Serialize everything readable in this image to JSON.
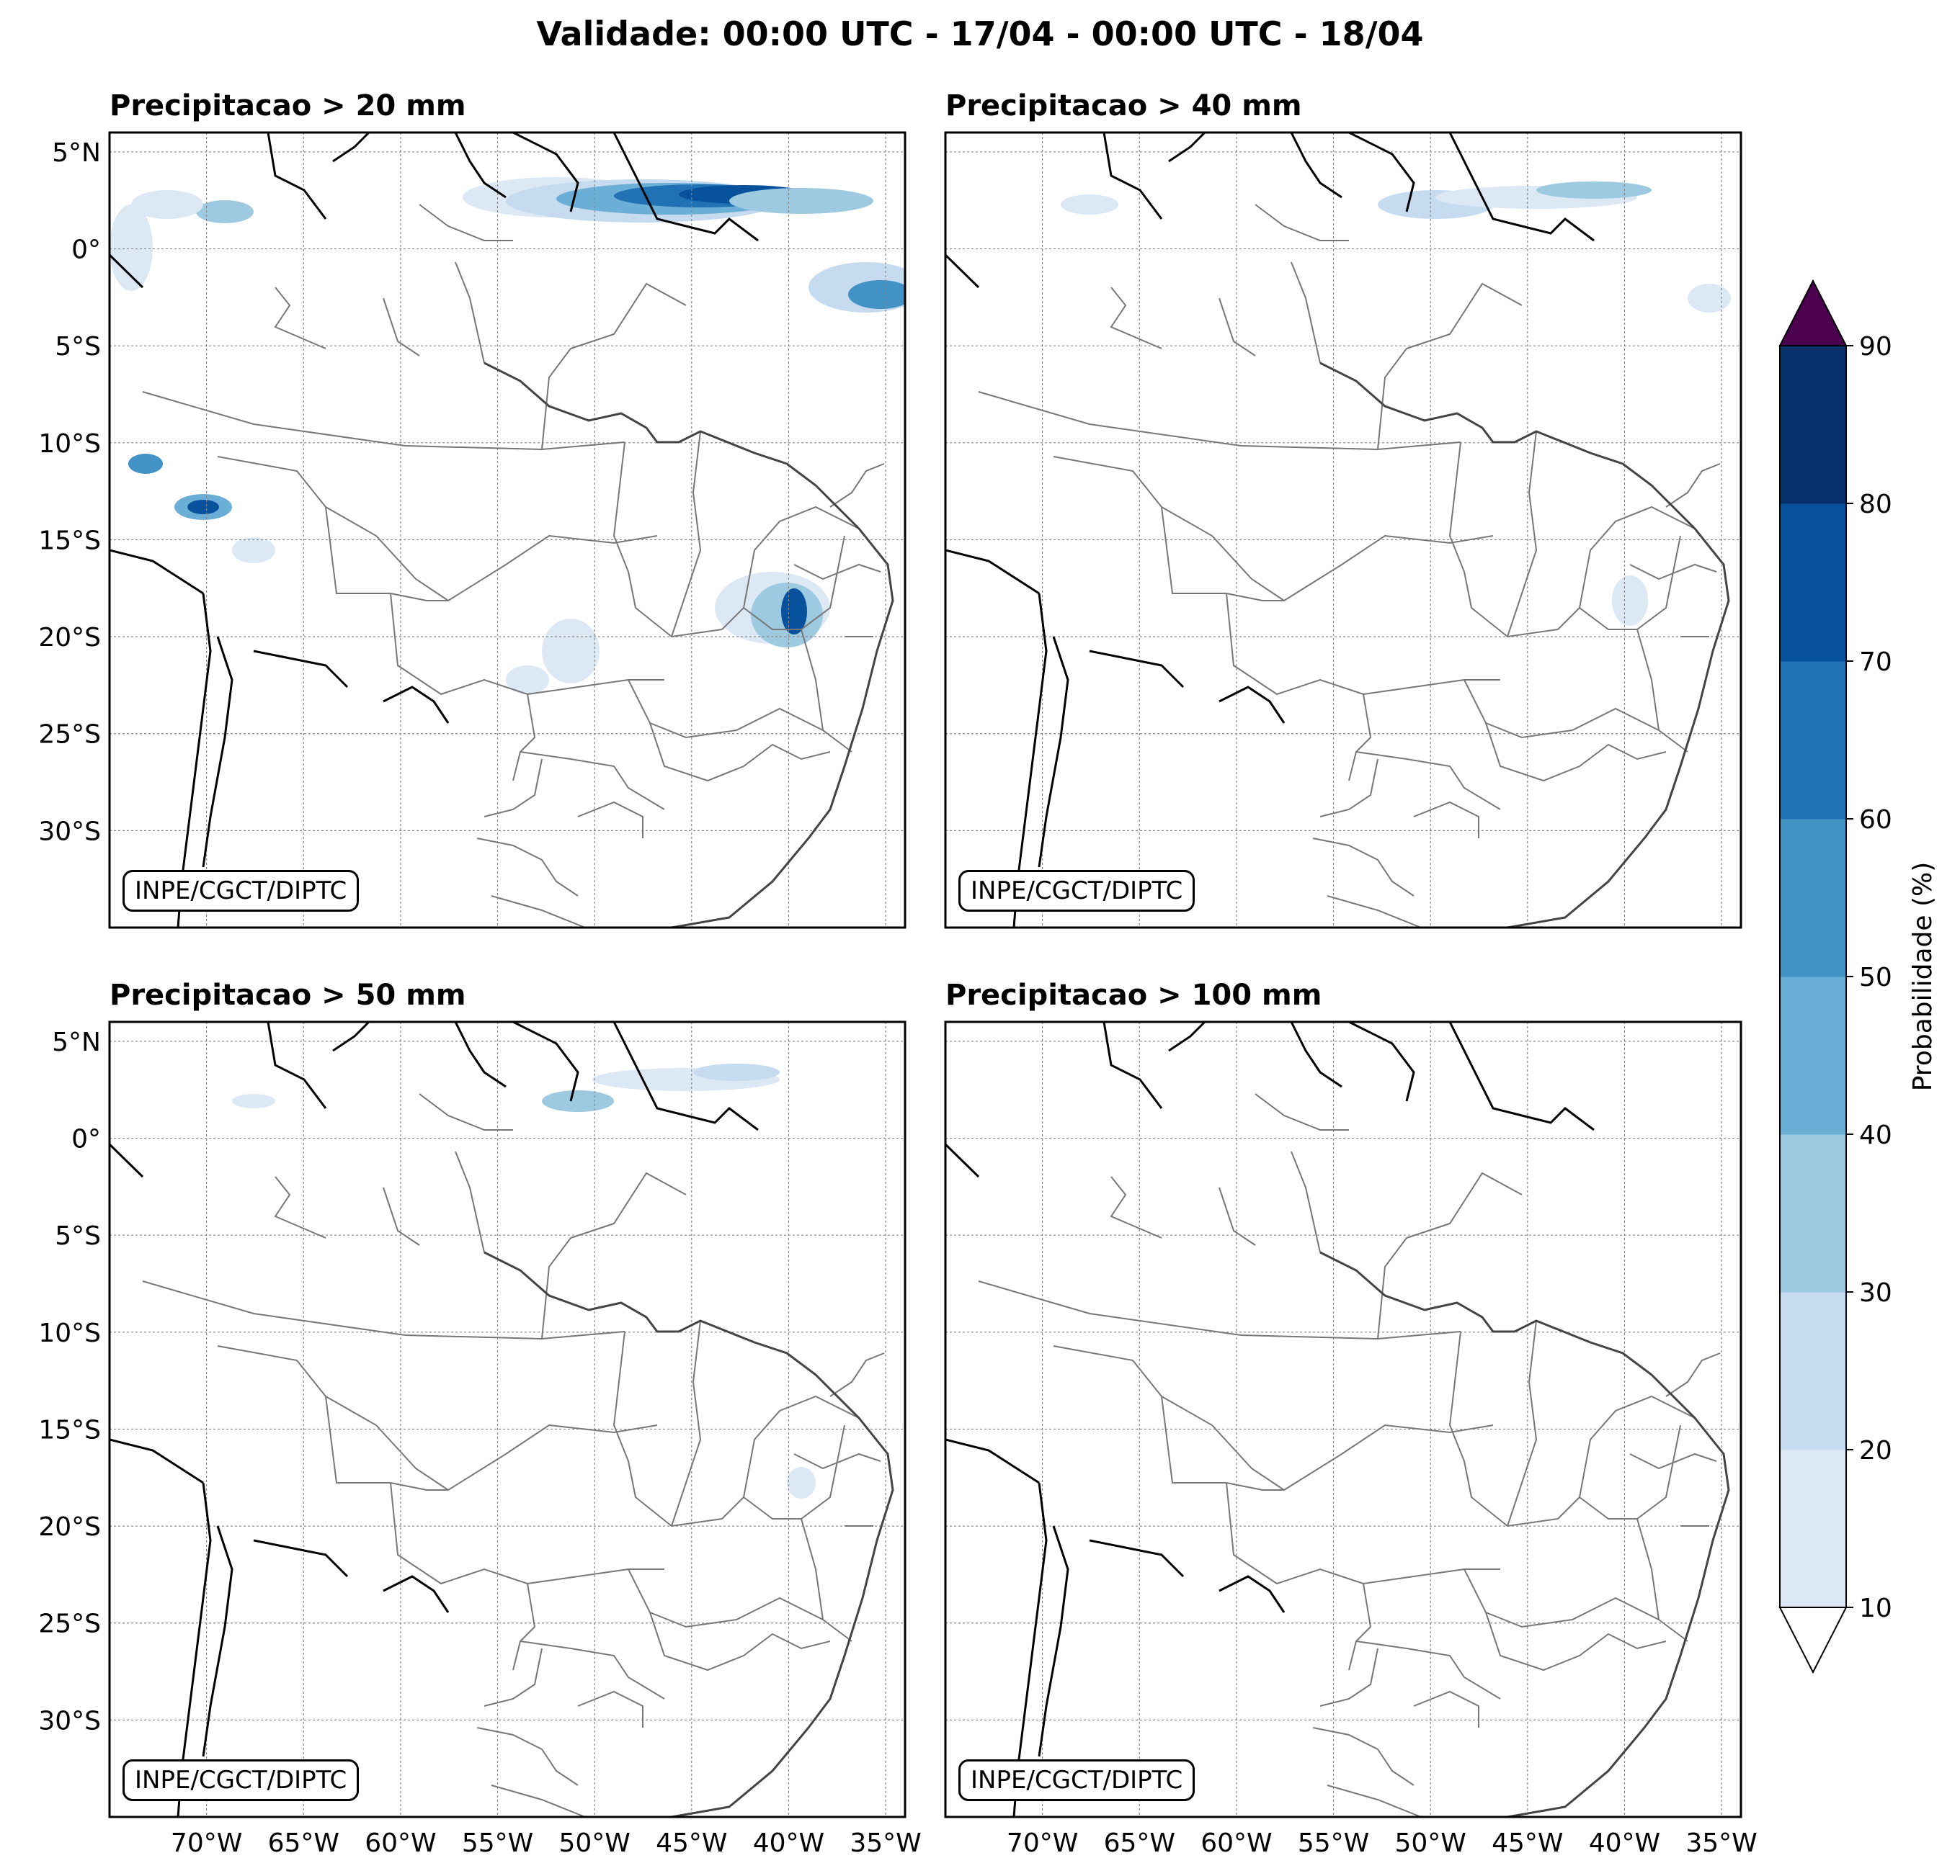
{
  "suptitle": "Validade: 00:00 UTC - 17/04 - 00:00 UTC - 18/04",
  "panels": [
    {
      "title": "Precipitacao > 20 mm",
      "credit": "INPE/CGCT/DIPTC"
    },
    {
      "title": "Precipitacao > 40 mm",
      "credit": "INPE/CGCT/DIPTC"
    },
    {
      "title": "Precipitacao > 50 mm",
      "credit": "INPE/CGCT/DIPTC"
    },
    {
      "title": "Precipitacao > 100 mm",
      "credit": "INPE/CGCT/DIPTC"
    }
  ],
  "lat_ticks": [
    "5°N",
    "0°",
    "5°S",
    "10°S",
    "15°S",
    "20°S",
    "25°S",
    "30°S"
  ],
  "lat_values": [
    5,
    0,
    -5,
    -10,
    -15,
    -20,
    -25,
    -30
  ],
  "lon_ticks": [
    "70°W",
    "65°W",
    "60°W",
    "55°W",
    "50°W",
    "45°W",
    "40°W",
    "35°W"
  ],
  "lon_values": [
    -70,
    -65,
    -60,
    -55,
    -50,
    -45,
    -40,
    -35
  ],
  "extent": {
    "lon_min": -75,
    "lon_max": -34,
    "lat_min": -35,
    "lat_max": 6
  },
  "colorbar": {
    "label": "Probabilidade (%)",
    "ticks": [
      "10",
      "20",
      "30",
      "40",
      "50",
      "60",
      "70",
      "80",
      "90"
    ],
    "levels": [
      10,
      20,
      30,
      40,
      50,
      60,
      70,
      80,
      90
    ],
    "colors": [
      "#dde8f5",
      "#c6dbef",
      "#9ecae1",
      "#6baed6",
      "#4292c6",
      "#2171b5",
      "#08519c",
      "#08306b"
    ],
    "over_color": "#4b0050",
    "under_color": "#ffffff"
  }
}
